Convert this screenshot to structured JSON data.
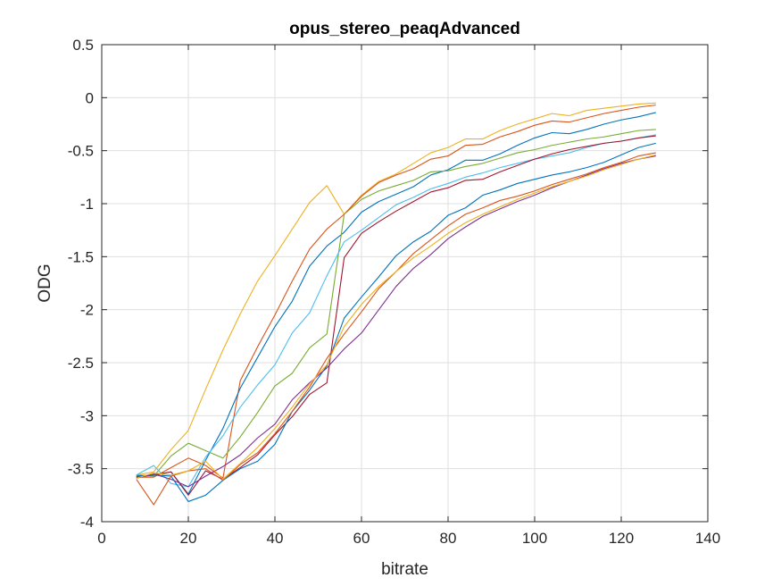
{
  "chart_data": {
    "type": "line",
    "title": "opus_stereo_peaqAdvanced",
    "xlabel": "bitrate",
    "ylabel": "ODG",
    "xlim": [
      0,
      140
    ],
    "ylim": [
      -4,
      0.5
    ],
    "xticks": [
      0,
      20,
      40,
      60,
      80,
      100,
      120,
      140
    ],
    "yticks": [
      0.5,
      0,
      -0.5,
      -1,
      -1.5,
      -2,
      -2.5,
      -3,
      -3.5,
      -4
    ],
    "xtick_labels": [
      "0",
      "20",
      "40",
      "60",
      "80",
      "100",
      "120",
      "140"
    ],
    "ytick_labels": [
      "0.5",
      "0",
      "-0.5",
      "-1",
      "-1.5",
      "-2",
      "-2.5",
      "-3",
      "-3.5",
      "-4"
    ],
    "grid": true,
    "box": true,
    "x": [
      8,
      12,
      16,
      20,
      24,
      28,
      32,
      36,
      40,
      44,
      48,
      52,
      56,
      60,
      64,
      68,
      72,
      76,
      80,
      84,
      88,
      92,
      96,
      100,
      104,
      108,
      112,
      116,
      120,
      124,
      128
    ],
    "series": [
      {
        "color": "#EDB120",
        "values": [
          -3.56,
          -3.53,
          -3.32,
          -3.14,
          -2.75,
          -2.38,
          -2.04,
          -1.73,
          -1.49,
          -1.24,
          -0.99,
          -0.83,
          -1.1,
          -0.92,
          -0.79,
          -0.72,
          -0.62,
          -0.52,
          -0.47,
          -0.39,
          -0.39,
          -0.31,
          -0.25,
          -0.2,
          -0.15,
          -0.17,
          -0.12,
          -0.1,
          -0.08,
          -0.06,
          -0.05
        ]
      },
      {
        "color": "#D95319",
        "values": [
          -3.58,
          -3.58,
          -3.49,
          -3.4,
          -3.47,
          -3.59,
          -2.67,
          -2.35,
          -2.05,
          -1.73,
          -1.43,
          -1.24,
          -1.1,
          -0.93,
          -0.8,
          -0.73,
          -0.67,
          -0.58,
          -0.55,
          -0.45,
          -0.44,
          -0.37,
          -0.32,
          -0.26,
          -0.22,
          -0.23,
          -0.19,
          -0.15,
          -0.12,
          -0.09,
          -0.07
        ]
      },
      {
        "color": "#0072BD",
        "values": [
          -3.57,
          -3.56,
          -3.53,
          -3.74,
          -3.42,
          -3.12,
          -2.74,
          -2.45,
          -2.16,
          -1.92,
          -1.59,
          -1.4,
          -1.27,
          -1.08,
          -0.98,
          -0.91,
          -0.84,
          -0.73,
          -0.68,
          -0.59,
          -0.59,
          -0.53,
          -0.45,
          -0.38,
          -0.33,
          -0.34,
          -0.3,
          -0.25,
          -0.21,
          -0.18,
          -0.14
        ]
      },
      {
        "color": "#77AC30",
        "values": [
          -3.56,
          -3.57,
          -3.38,
          -3.26,
          -3.33,
          -3.4,
          -3.2,
          -2.97,
          -2.72,
          -2.6,
          -2.36,
          -2.23,
          -1.1,
          -0.96,
          -0.88,
          -0.83,
          -0.78,
          -0.7,
          -0.69,
          -0.65,
          -0.62,
          -0.57,
          -0.52,
          -0.49,
          -0.45,
          -0.42,
          -0.39,
          -0.37,
          -0.34,
          -0.31,
          -0.3
        ]
      },
      {
        "color": "#4DBEEE",
        "values": [
          -3.56,
          -3.47,
          -3.64,
          -3.67,
          -3.39,
          -3.19,
          -2.92,
          -2.71,
          -2.52,
          -2.22,
          -2.03,
          -1.68,
          -1.36,
          -1.25,
          -1.13,
          -1.01,
          -0.94,
          -0.86,
          -0.81,
          -0.75,
          -0.71,
          -0.66,
          -0.62,
          -0.58,
          -0.55,
          -0.52,
          -0.47,
          -0.43,
          -0.41,
          -0.38,
          -0.35
        ]
      },
      {
        "color": "#A2142F",
        "values": [
          -3.58,
          -3.56,
          -3.53,
          -3.75,
          -3.52,
          -3.6,
          -3.49,
          -3.37,
          -3.18,
          -3.01,
          -2.8,
          -2.69,
          -1.51,
          -1.28,
          -1.17,
          -1.07,
          -0.98,
          -0.89,
          -0.85,
          -0.78,
          -0.77,
          -0.7,
          -0.64,
          -0.58,
          -0.53,
          -0.49,
          -0.46,
          -0.43,
          -0.41,
          -0.38,
          -0.36
        ]
      },
      {
        "color": "#0072BD",
        "values": [
          -3.57,
          -3.56,
          -3.57,
          -3.81,
          -3.75,
          -3.61,
          -3.5,
          -3.43,
          -3.27,
          -2.96,
          -2.76,
          -2.53,
          -2.08,
          -1.88,
          -1.69,
          -1.49,
          -1.36,
          -1.26,
          -1.11,
          -1.04,
          -0.92,
          -0.87,
          -0.81,
          -0.77,
          -0.73,
          -0.7,
          -0.66,
          -0.61,
          -0.54,
          -0.47,
          -0.43
        ]
      },
      {
        "color": "#D95319",
        "values": [
          -3.6,
          -3.84,
          -3.57,
          -3.52,
          -3.5,
          -3.61,
          -3.46,
          -3.35,
          -3.17,
          -2.96,
          -2.73,
          -2.46,
          -2.23,
          -2.02,
          -1.8,
          -1.64,
          -1.47,
          -1.34,
          -1.21,
          -1.1,
          -1.04,
          -0.97,
          -0.93,
          -0.88,
          -0.82,
          -0.77,
          -0.72,
          -0.66,
          -0.61,
          -0.55,
          -0.52
        ]
      },
      {
        "color": "#7E2F8E",
        "values": [
          -3.59,
          -3.55,
          -3.6,
          -3.67,
          -3.57,
          -3.48,
          -3.37,
          -3.21,
          -3.08,
          -2.85,
          -2.69,
          -2.55,
          -2.37,
          -2.22,
          -2.0,
          -1.78,
          -1.61,
          -1.48,
          -1.33,
          -1.22,
          -1.12,
          -1.05,
          -0.98,
          -0.92,
          -0.85,
          -0.79,
          -0.73,
          -0.67,
          -0.62,
          -0.58,
          -0.55
        ]
      },
      {
        "color": "#EDB120",
        "values": [
          -3.59,
          -3.54,
          -3.56,
          -3.52,
          -3.43,
          -3.6,
          -3.45,
          -3.3,
          -3.12,
          -2.92,
          -2.7,
          -2.52,
          -2.16,
          -1.95,
          -1.78,
          -1.64,
          -1.51,
          -1.4,
          -1.28,
          -1.18,
          -1.1,
          -1.03,
          -0.96,
          -0.9,
          -0.84,
          -0.79,
          -0.74,
          -0.68,
          -0.63,
          -0.58,
          -0.54
        ]
      }
    ]
  }
}
